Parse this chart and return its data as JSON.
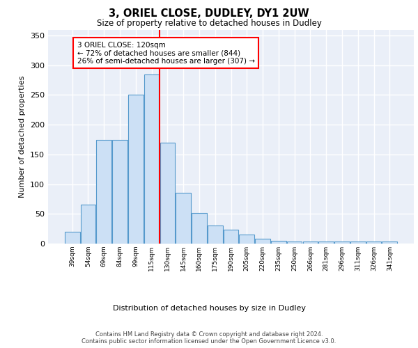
{
  "title1": "3, ORIEL CLOSE, DUDLEY, DY1 2UW",
  "title2": "Size of property relative to detached houses in Dudley",
  "xlabel": "Distribution of detached houses by size in Dudley",
  "ylabel": "Number of detached properties",
  "categories": [
    "39sqm",
    "54sqm",
    "69sqm",
    "84sqm",
    "99sqm",
    "115sqm",
    "130sqm",
    "145sqm",
    "160sqm",
    "175sqm",
    "190sqm",
    "205sqm",
    "220sqm",
    "235sqm",
    "250sqm",
    "266sqm",
    "281sqm",
    "296sqm",
    "311sqm",
    "326sqm",
    "341sqm"
  ],
  "bar_heights": [
    20,
    65,
    175,
    175,
    250,
    285,
    170,
    85,
    52,
    30,
    23,
    15,
    8,
    5,
    4,
    3,
    3,
    3,
    3,
    3,
    3
  ],
  "bar_color": "#cce0f5",
  "bar_edge_color": "#5599cc",
  "background_color": "#eaeff8",
  "grid_color": "#ffffff",
  "annotation_text": "3 ORIEL CLOSE: 120sqm\n← 72% of detached houses are smaller (844)\n26% of semi-detached houses are larger (307) →",
  "vline_color": "red",
  "vline_x": 5.5,
  "footer1": "Contains HM Land Registry data © Crown copyright and database right 2024.",
  "footer2": "Contains public sector information licensed under the Open Government Licence v3.0.",
  "ylim": [
    0,
    360
  ],
  "yticks": [
    0,
    50,
    100,
    150,
    200,
    250,
    300,
    350
  ]
}
